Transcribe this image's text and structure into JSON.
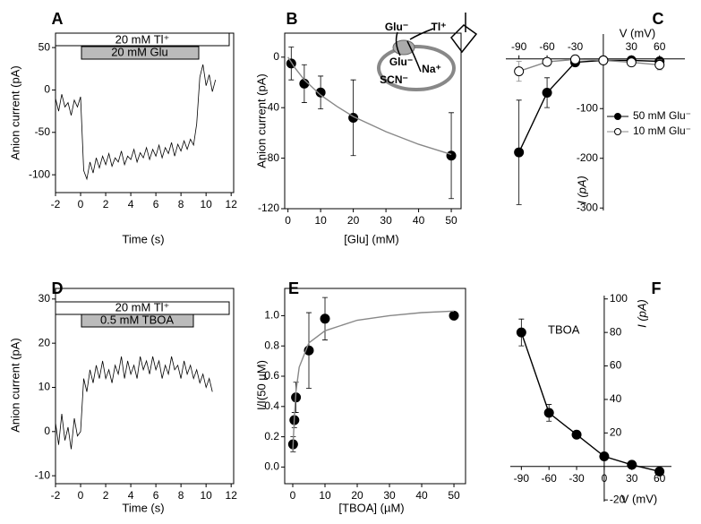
{
  "chart_data": [
    {
      "type": "line",
      "label": "A",
      "xlabel": "Time (s)",
      "ylabel": "Anion current (pA)",
      "annotations": [
        "20 mM Tl⁺",
        "20 mM Glu"
      ],
      "xlim": [
        -2,
        12.2
      ],
      "ylim": [
        -121,
        67
      ],
      "xticks": [
        -2,
        0,
        2,
        4,
        6,
        8,
        10,
        12
      ],
      "yticks": [
        -100,
        -50,
        0,
        50
      ],
      "series": [
        {
          "color": "#000000",
          "marker": "none",
          "x": [
            -2,
            -1.75,
            -1.5,
            -1.25,
            -1,
            -0.75,
            -0.5,
            -0.25,
            0,
            0.25,
            0.5,
            0.75,
            1,
            1.25,
            1.5,
            1.75,
            2,
            2.25,
            2.5,
            2.75,
            3,
            3.25,
            3.5,
            3.75,
            4,
            4.25,
            4.5,
            4.75,
            5,
            5.25,
            5.5,
            5.75,
            6,
            6.25,
            6.5,
            6.75,
            7,
            7.25,
            7.5,
            7.75,
            8,
            8.25,
            8.5,
            8.75,
            9,
            9.25,
            9.5,
            9.75,
            10,
            10.25,
            10.5,
            10.75
          ],
          "values": [
            -10,
            -25,
            -5,
            -20,
            -15,
            -30,
            -12,
            -20,
            -8,
            -95,
            -105,
            -85,
            -98,
            -80,
            -92,
            -78,
            -88,
            -75,
            -90,
            -80,
            -85,
            -72,
            -88,
            -78,
            -82,
            -70,
            -85,
            -74,
            -80,
            -68,
            -82,
            -70,
            -78,
            -65,
            -80,
            -68,
            -75,
            -62,
            -78,
            -64,
            -72,
            -60,
            -70,
            -58,
            -65,
            -40,
            15,
            30,
            5,
            18,
            -2,
            12
          ]
        }
      ]
    },
    {
      "type": "scatter",
      "label": "B",
      "xlabel": "[Glu] (mM)",
      "ylabel": "Anion current (pA)",
      "annotations": [
        "Glu⁻",
        "Tl⁺",
        "Glu⁻",
        "Na⁺",
        "SCN⁻"
      ],
      "xlim": [
        -1,
        53
      ],
      "ylim": [
        -120,
        19
      ],
      "xticks": [
        0,
        10,
        20,
        30,
        40,
        50
      ],
      "yticks": [
        -120,
        -80,
        -40,
        0
      ],
      "series": [
        {
          "color": "#000000",
          "marker": "filled",
          "x": [
            1,
            5,
            10,
            20,
            50
          ],
          "values": [
            -5,
            -21,
            -28,
            -48,
            -78
          ],
          "errors": [
            13,
            15,
            13,
            30,
            34
          ]
        },
        {
          "color": "#888888",
          "marker": "none",
          "x": [
            0,
            1,
            2,
            5,
            10,
            15,
            20,
            30,
            40,
            50
          ],
          "values": [
            0,
            -4,
            -8,
            -18,
            -30,
            -39,
            -47,
            -59,
            -69,
            -77
          ]
        }
      ]
    },
    {
      "type": "line",
      "label": "C",
      "xlabel": "V (mV)",
      "ylabel": "I (pA)",
      "legend": "center right",
      "xlim": [
        -104,
        87
      ],
      "ylim": [
        -305,
        50
      ],
      "xticks": [
        -90,
        -60,
        -30,
        30,
        60
      ],
      "yticks": [
        -300,
        -200,
        -100
      ],
      "series": [
        {
          "name": "50 mM Glu⁻",
          "color": "#000000",
          "marker": "filled",
          "x": [
            -90,
            -60,
            -30,
            0,
            30,
            60
          ],
          "values": [
            -188,
            -68,
            -7,
            -3,
            -3,
            -5
          ],
          "errors": [
            105,
            30,
            5,
            3,
            3,
            3
          ]
        },
        {
          "name": "10 mM Glu⁻",
          "color": "#888888",
          "marker": "open",
          "x": [
            -90,
            -60,
            -30,
            0,
            30,
            60
          ],
          "values": [
            -25,
            -6,
            -1,
            -3,
            -7,
            -12
          ],
          "errors": [
            20,
            6,
            2,
            2,
            3,
            10
          ]
        }
      ]
    },
    {
      "type": "line",
      "label": "D",
      "xlabel": "Time (s)",
      "ylabel": "Anion current (pA)",
      "annotations": [
        "20 mM Tl⁺",
        "0.5 mM TBOA"
      ],
      "xlim": [
        -2,
        12.2
      ],
      "ylim": [
        -11.8,
        32.4
      ],
      "xticks": [
        -2,
        0,
        2,
        4,
        6,
        8,
        10,
        12
      ],
      "yticks": [
        -10,
        0,
        10,
        20,
        30
      ],
      "series": [
        {
          "color": "#000000",
          "marker": "none",
          "x": [
            -2,
            -1.75,
            -1.5,
            -1.25,
            -1,
            -0.75,
            -0.5,
            -0.25,
            0,
            0.25,
            0.5,
            0.75,
            1,
            1.25,
            1.5,
            1.75,
            2,
            2.25,
            2.5,
            2.75,
            3,
            3.25,
            3.5,
            3.75,
            4,
            4.25,
            4.5,
            4.75,
            5,
            5.25,
            5.5,
            5.75,
            6,
            6.25,
            6.5,
            6.75,
            7,
            7.25,
            7.5,
            7.75,
            8,
            8.25,
            8.5,
            8.75,
            9,
            9.25,
            9.5,
            9.75,
            10,
            10.25,
            10.5
          ],
          "values": [
            2,
            -3,
            4,
            -2,
            1,
            -4,
            3,
            -1,
            0,
            12,
            9,
            14,
            11,
            15,
            12,
            16,
            12,
            14,
            11,
            15,
            13,
            17,
            12,
            16,
            13,
            15,
            12,
            17,
            14,
            16,
            13,
            17,
            14,
            16,
            12,
            15,
            13,
            17,
            14,
            15,
            12,
            16,
            13,
            15,
            12,
            14,
            11,
            13,
            10,
            12,
            9
          ]
        }
      ]
    },
    {
      "type": "scatter",
      "label": "E",
      "xlabel": "[TBOA] (µM)",
      "ylabel": "I/I(50 µM)",
      "xlim": [
        -2.5,
        53.6
      ],
      "ylim": [
        -0.11,
        1.18
      ],
      "xticks": [
        0,
        10,
        20,
        30,
        40,
        50
      ],
      "yticks": [
        {
          "value": 0,
          "label": "0.0"
        },
        0.2,
        0.4,
        0.6,
        0.8,
        {
          "value": 1,
          "label": "1.0"
        }
      ],
      "series": [
        {
          "color": "#000000",
          "marker": "filled",
          "x": [
            0.1,
            0.5,
            1,
            5,
            10,
            50
          ],
          "values": [
            0.15,
            0.31,
            0.46,
            0.77,
            0.98,
            1.0
          ],
          "errors": [
            0.05,
            0.05,
            0.1,
            0.25,
            0.14,
            0.02
          ]
        },
        {
          "color": "#888888",
          "marker": "none",
          "x": [
            0,
            0.5,
            1,
            2,
            5,
            10,
            20,
            30,
            40,
            50
          ],
          "values": [
            0.1,
            0.33,
            0.5,
            0.66,
            0.82,
            0.9,
            0.97,
            1.0,
            1.02,
            1.03
          ]
        }
      ]
    },
    {
      "type": "line",
      "label": "F",
      "xlabel": "V (mV)",
      "ylabel": "I (pA)",
      "annotations": [
        "TBOA"
      ],
      "xlim": [
        -102,
        73
      ],
      "ylim": [
        -21,
        102
      ],
      "xticks": [
        -90,
        -60,
        -30,
        0,
        30,
        60
      ],
      "yticks": [
        -20,
        20,
        40,
        60,
        80,
        100
      ],
      "series": [
        {
          "color": "#000000",
          "marker": "filled",
          "x": [
            -90,
            -60,
            -30,
            0,
            30,
            60
          ],
          "values": [
            80,
            32,
            19,
            6,
            1,
            -3
          ],
          "errors": [
            8,
            5,
            2,
            2,
            2,
            2
          ]
        }
      ]
    }
  ]
}
